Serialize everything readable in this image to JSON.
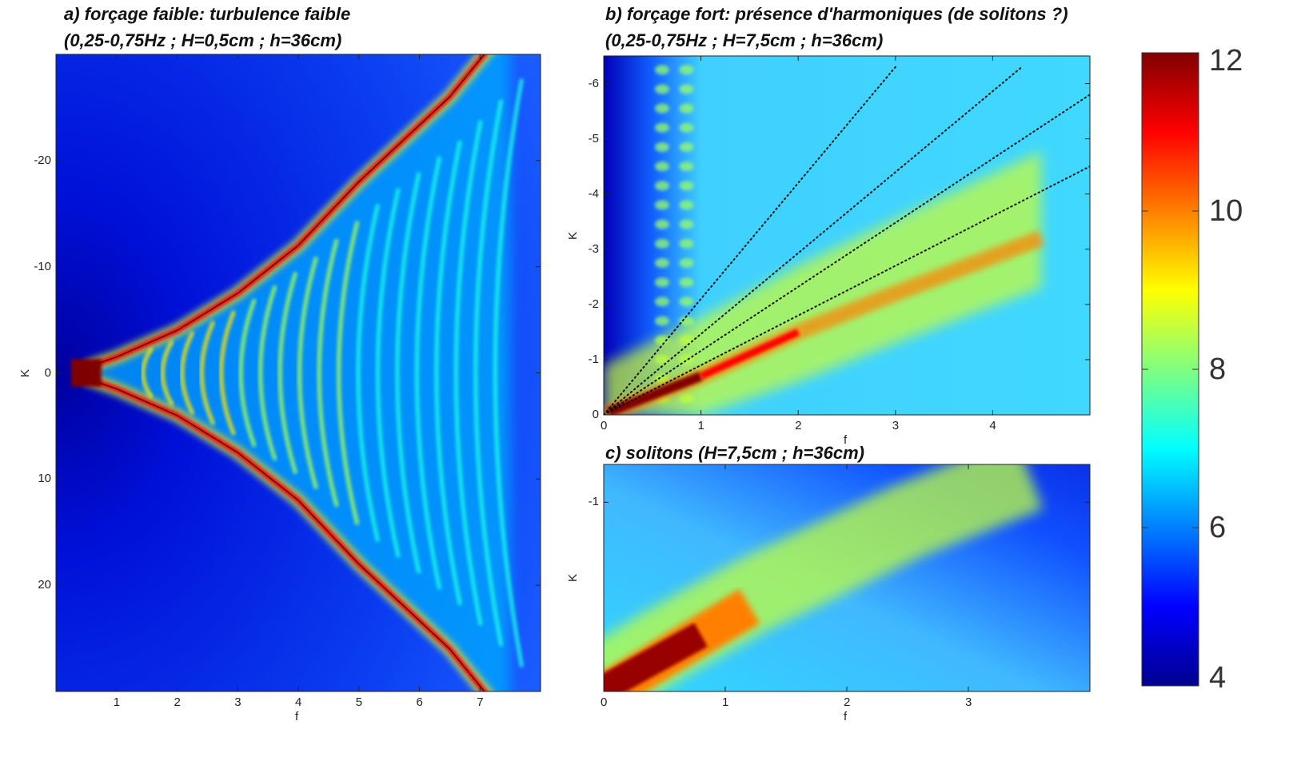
{
  "panels": {
    "a": {
      "title_line1": "a) forçage faible: turbulence faible",
      "title_line2": "(0,25-0,75Hz ; H=0,5cm ; h=36cm)"
    },
    "b": {
      "title_line1": "b) forçage fort: présence d'harmoniques (de solitons ?)",
      "title_line2": "(0,25-0,75Hz ; H=7,5cm ; h=36cm)"
    },
    "c": {
      "title_line1": "c) solitons (H=7,5cm ; h=36cm)"
    }
  },
  "chart_data": [
    {
      "type": "heatmap",
      "panel": "a",
      "title": "a) forçage faible: turbulence faible (0,25-0,75Hz ; H=0,5cm ; h=36cm)",
      "xlabel": "f",
      "ylabel": "K",
      "xlim": [
        0,
        8
      ],
      "ylim": [
        30,
        -30
      ],
      "xticks": [
        "1",
        "2",
        "3",
        "4",
        "5",
        "6",
        "7"
      ],
      "yticks": [
        "-20",
        "-10",
        "0",
        "10",
        "20"
      ],
      "features": [
        {
          "name": "dispersion branches",
          "k_at_f": [
            [
              0.5,
              0.5
            ],
            [
              1,
              1.5
            ],
            [
              2,
              4
            ],
            [
              3,
              7.5
            ],
            [
              4,
              12
            ],
            [
              5,
              18
            ],
            [
              6.5,
              26
            ],
            [
              7.5,
              33
            ]
          ],
          "symmetric": true,
          "level": 11
        },
        {
          "name": "forcing band",
          "f_range": [
            0.25,
            0.75
          ],
          "k": 0,
          "level": 12
        },
        {
          "name": "fringes",
          "f_range": [
            1.5,
            7.5
          ],
          "level": 7
        }
      ]
    },
    {
      "type": "heatmap",
      "panel": "b",
      "title": "b) forçage fort: présence d'harmoniques (de solitons ?) (0,25-0,75Hz ; H=7,5cm ; h=36cm)",
      "xlabel": "f",
      "ylabel": "K",
      "xlim": [
        0,
        5
      ],
      "ylim": [
        0,
        -6.5
      ],
      "xticks": [
        "0",
        "1",
        "2",
        "3",
        "4"
      ],
      "yticks": [
        "0",
        "-1",
        "-2",
        "-3",
        "-4",
        "-5",
        "-6"
      ],
      "dotted_lines": [
        {
          "f": [
            0,
            3
          ],
          "k": [
            0,
            -6.3
          ]
        },
        {
          "f": [
            0,
            4.3
          ],
          "k": [
            0,
            -6.3
          ]
        },
        {
          "f": [
            0,
            5
          ],
          "k": [
            0,
            -5.8
          ]
        },
        {
          "f": [
            0,
            5
          ],
          "k": [
            0,
            -4.5
          ]
        }
      ],
      "features": [
        {
          "name": "main branch",
          "f": [
            0,
            1,
            2,
            3,
            4.5
          ],
          "k": [
            0,
            -0.7,
            -1.5,
            -2.2,
            -3.2
          ],
          "level": 12
        }
      ]
    },
    {
      "type": "heatmap",
      "panel": "c",
      "title": "c) solitons (H=7,5cm ; h=36cm)",
      "xlabel": "f",
      "ylabel": "K",
      "xlim": [
        0,
        4
      ],
      "ylim": [
        0,
        -1.2
      ],
      "xticks": [
        "0",
        "1",
        "2",
        "3"
      ],
      "yticks": [
        "-1"
      ],
      "features": [
        {
          "name": "soliton branch",
          "f": [
            0,
            0.5,
            1.2,
            2.5,
            3.5
          ],
          "k": [
            -0.05,
            -0.25,
            -0.5,
            -0.9,
            -1.15
          ],
          "level": 12
        }
      ]
    }
  ],
  "colorbar": {
    "range": [
      4,
      12
    ],
    "ticks": [
      "12",
      "10",
      "8",
      "6",
      "4"
    ],
    "colormap": [
      "#00008f",
      "#0000ff",
      "#00ffff",
      "#ffff00",
      "#ff0000",
      "#800000"
    ]
  }
}
